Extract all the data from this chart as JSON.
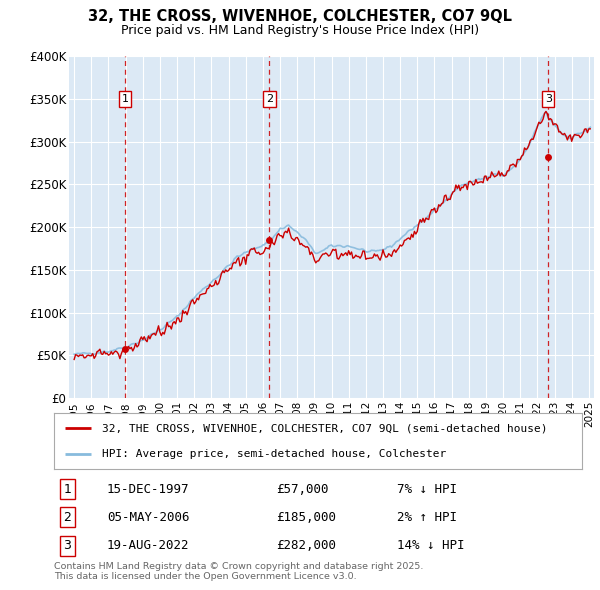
{
  "title": "32, THE CROSS, WIVENHOE, COLCHESTER, CO7 9QL",
  "subtitle": "Price paid vs. HM Land Registry's House Price Index (HPI)",
  "legend_line1": "32, THE CROSS, WIVENHOE, COLCHESTER, CO7 9QL (semi-detached house)",
  "legend_line2": "HPI: Average price, semi-detached house, Colchester",
  "footer": "Contains HM Land Registry data © Crown copyright and database right 2025.\nThis data is licensed under the Open Government Licence v3.0.",
  "sales": [
    {
      "num": 1,
      "date": "15-DEC-1997",
      "price": 57000,
      "pct": "7%",
      "dir": "↓",
      "year": 1997.958
    },
    {
      "num": 2,
      "date": "05-MAY-2006",
      "price": 185000,
      "pct": "2%",
      "dir": "↑",
      "year": 2006.37
    },
    {
      "num": 3,
      "date": "19-AUG-2022",
      "price": 282000,
      "pct": "14%",
      "dir": "↓",
      "year": 2022.63
    }
  ],
  "price_color": "#cc0000",
  "hpi_color": "#88bbdd",
  "dashed_color": "#cc0000",
  "plot_bg": "#dce9f5",
  "ylim": [
    0,
    400000
  ],
  "xlim_start": 1994.7,
  "xlim_end": 2025.3,
  "yticks": [
    0,
    50000,
    100000,
    150000,
    200000,
    250000,
    300000,
    350000,
    400000
  ],
  "ytick_labels": [
    "£0",
    "£50K",
    "£100K",
    "£150K",
    "£200K",
    "£250K",
    "£300K",
    "£350K",
    "£400K"
  ]
}
